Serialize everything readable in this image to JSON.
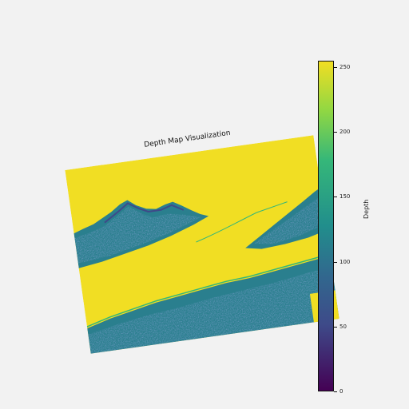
{
  "chart_data": {
    "type": "heatmap",
    "title": "Depth Map Visualization",
    "colormap": "viridis",
    "colorbar": {
      "label": "Depth",
      "range": [
        0,
        255
      ],
      "ticks": [
        0,
        50,
        100,
        150,
        200,
        250
      ]
    },
    "colors": {
      "high": "#f1de23",
      "mid": "#218e8c",
      "low": "#3e4a89",
      "min": "#440154"
    }
  }
}
